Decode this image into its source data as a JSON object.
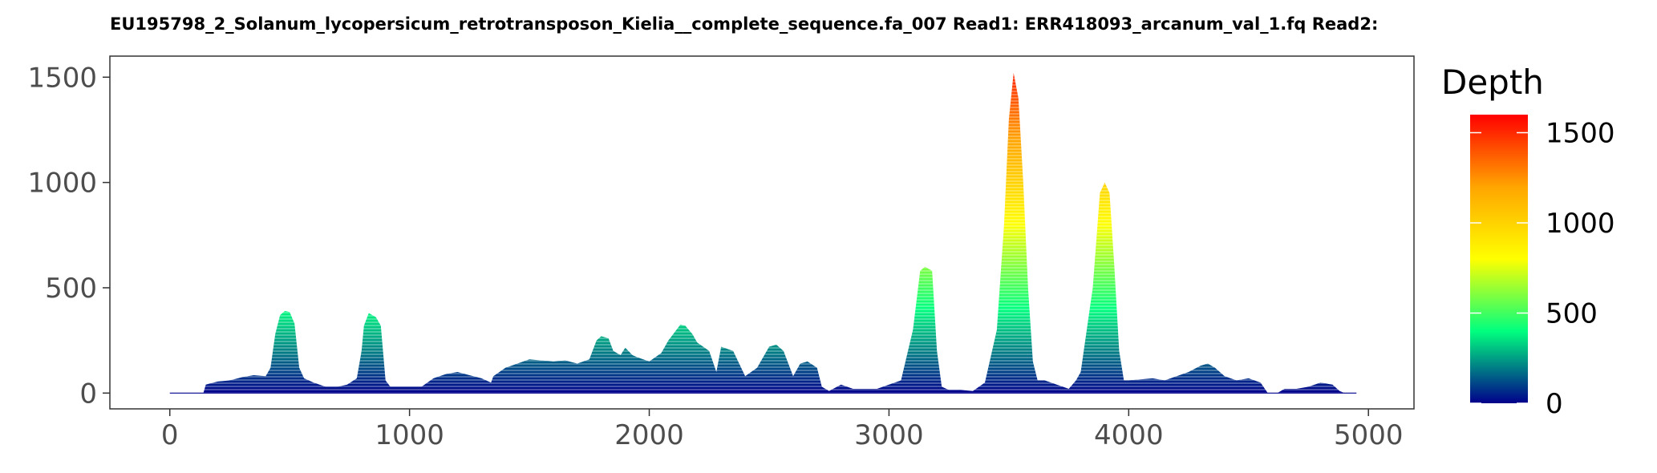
{
  "chart_data": {
    "type": "area",
    "title": "EU195798_2_Solanum_lycopersicum_retrotransposon_Kielia__complete_sequence.fa_007   Read1: ERR418093_arcanum_val_1.fq   Read2:",
    "xlabel": "",
    "ylabel": "",
    "xlim": [
      -250,
      5190
    ],
    "ylim": [
      -75,
      1600
    ],
    "x_ticks": [
      "0",
      "1000",
      "2000",
      "3000",
      "4000",
      "5000"
    ],
    "x_tick_values": [
      0,
      1000,
      2000,
      3000,
      4000,
      5000
    ],
    "y_ticks": [
      "0",
      "500",
      "1000",
      "1500"
    ],
    "y_tick_values": [
      0,
      500,
      1000,
      1500
    ],
    "grid": false,
    "legend": {
      "title": "Depth",
      "position": "right",
      "type": "colorbar",
      "labels": [
        "0",
        "500",
        "1000",
        "1500"
      ],
      "values": [
        0,
        500,
        1000,
        1500
      ],
      "range": [
        0,
        1600
      ],
      "colors": [
        "#00008b",
        "#00ff7f",
        "#ffff00",
        "#ffa500",
        "#ff0000"
      ]
    },
    "series": [
      {
        "points": [
          [
            0,
            0
          ],
          [
            140,
            0
          ],
          [
            150,
            40
          ],
          [
            200,
            55
          ],
          [
            250,
            60
          ],
          [
            300,
            75
          ],
          [
            350,
            85
          ],
          [
            400,
            80
          ],
          [
            420,
            120
          ],
          [
            440,
            280
          ],
          [
            460,
            370
          ],
          [
            480,
            390
          ],
          [
            500,
            385
          ],
          [
            520,
            330
          ],
          [
            540,
            120
          ],
          [
            560,
            70
          ],
          [
            600,
            50
          ],
          [
            650,
            30
          ],
          [
            700,
            30
          ],
          [
            740,
            40
          ],
          [
            780,
            70
          ],
          [
            800,
            200
          ],
          [
            810,
            320
          ],
          [
            830,
            380
          ],
          [
            860,
            360
          ],
          [
            880,
            320
          ],
          [
            900,
            60
          ],
          [
            920,
            30
          ],
          [
            1000,
            30
          ],
          [
            1050,
            30
          ],
          [
            1100,
            70
          ],
          [
            1150,
            90
          ],
          [
            1200,
            100
          ],
          [
            1250,
            85
          ],
          [
            1300,
            70
          ],
          [
            1340,
            50
          ],
          [
            1350,
            80
          ],
          [
            1400,
            120
          ],
          [
            1450,
            140
          ],
          [
            1500,
            160
          ],
          [
            1550,
            155
          ],
          [
            1600,
            150
          ],
          [
            1650,
            155
          ],
          [
            1700,
            140
          ],
          [
            1750,
            160
          ],
          [
            1780,
            250
          ],
          [
            1800,
            270
          ],
          [
            1830,
            260
          ],
          [
            1850,
            200
          ],
          [
            1880,
            180
          ],
          [
            1900,
            215
          ],
          [
            1930,
            180
          ],
          [
            1950,
            170
          ],
          [
            2000,
            150
          ],
          [
            2050,
            190
          ],
          [
            2080,
            250
          ],
          [
            2100,
            280
          ],
          [
            2130,
            325
          ],
          [
            2150,
            320
          ],
          [
            2180,
            280
          ],
          [
            2200,
            240
          ],
          [
            2250,
            200
          ],
          [
            2280,
            100
          ],
          [
            2300,
            220
          ],
          [
            2350,
            200
          ],
          [
            2400,
            80
          ],
          [
            2450,
            120
          ],
          [
            2500,
            220
          ],
          [
            2530,
            230
          ],
          [
            2560,
            200
          ],
          [
            2600,
            80
          ],
          [
            2630,
            140
          ],
          [
            2660,
            150
          ],
          [
            2700,
            120
          ],
          [
            2720,
            30
          ],
          [
            2750,
            10
          ],
          [
            2800,
            40
          ],
          [
            2850,
            20
          ],
          [
            2900,
            20
          ],
          [
            2950,
            20
          ],
          [
            3000,
            40
          ],
          [
            3050,
            60
          ],
          [
            3100,
            300
          ],
          [
            3130,
            580
          ],
          [
            3150,
            600
          ],
          [
            3180,
            580
          ],
          [
            3200,
            200
          ],
          [
            3220,
            30
          ],
          [
            3250,
            15
          ],
          [
            3300,
            15
          ],
          [
            3350,
            10
          ],
          [
            3400,
            50
          ],
          [
            3450,
            300
          ],
          [
            3480,
            800
          ],
          [
            3500,
            1300
          ],
          [
            3520,
            1520
          ],
          [
            3540,
            1400
          ],
          [
            3560,
            1000
          ],
          [
            3580,
            500
          ],
          [
            3600,
            150
          ],
          [
            3620,
            60
          ],
          [
            3650,
            60
          ],
          [
            3700,
            40
          ],
          [
            3750,
            20
          ],
          [
            3780,
            60
          ],
          [
            3800,
            100
          ],
          [
            3850,
            500
          ],
          [
            3880,
            950
          ],
          [
            3900,
            1000
          ],
          [
            3920,
            950
          ],
          [
            3940,
            600
          ],
          [
            3960,
            200
          ],
          [
            3980,
            60
          ],
          [
            4000,
            60
          ],
          [
            4100,
            70
          ],
          [
            4150,
            60
          ],
          [
            4200,
            80
          ],
          [
            4250,
            100
          ],
          [
            4300,
            130
          ],
          [
            4330,
            140
          ],
          [
            4360,
            120
          ],
          [
            4400,
            80
          ],
          [
            4450,
            60
          ],
          [
            4500,
            70
          ],
          [
            4550,
            50
          ],
          [
            4580,
            0
          ],
          [
            4620,
            0
          ],
          [
            4650,
            20
          ],
          [
            4700,
            20
          ],
          [
            4750,
            30
          ],
          [
            4800,
            50
          ],
          [
            4850,
            40
          ],
          [
            4880,
            10
          ],
          [
            4900,
            0
          ],
          [
            4950,
            0
          ]
        ]
      }
    ]
  }
}
